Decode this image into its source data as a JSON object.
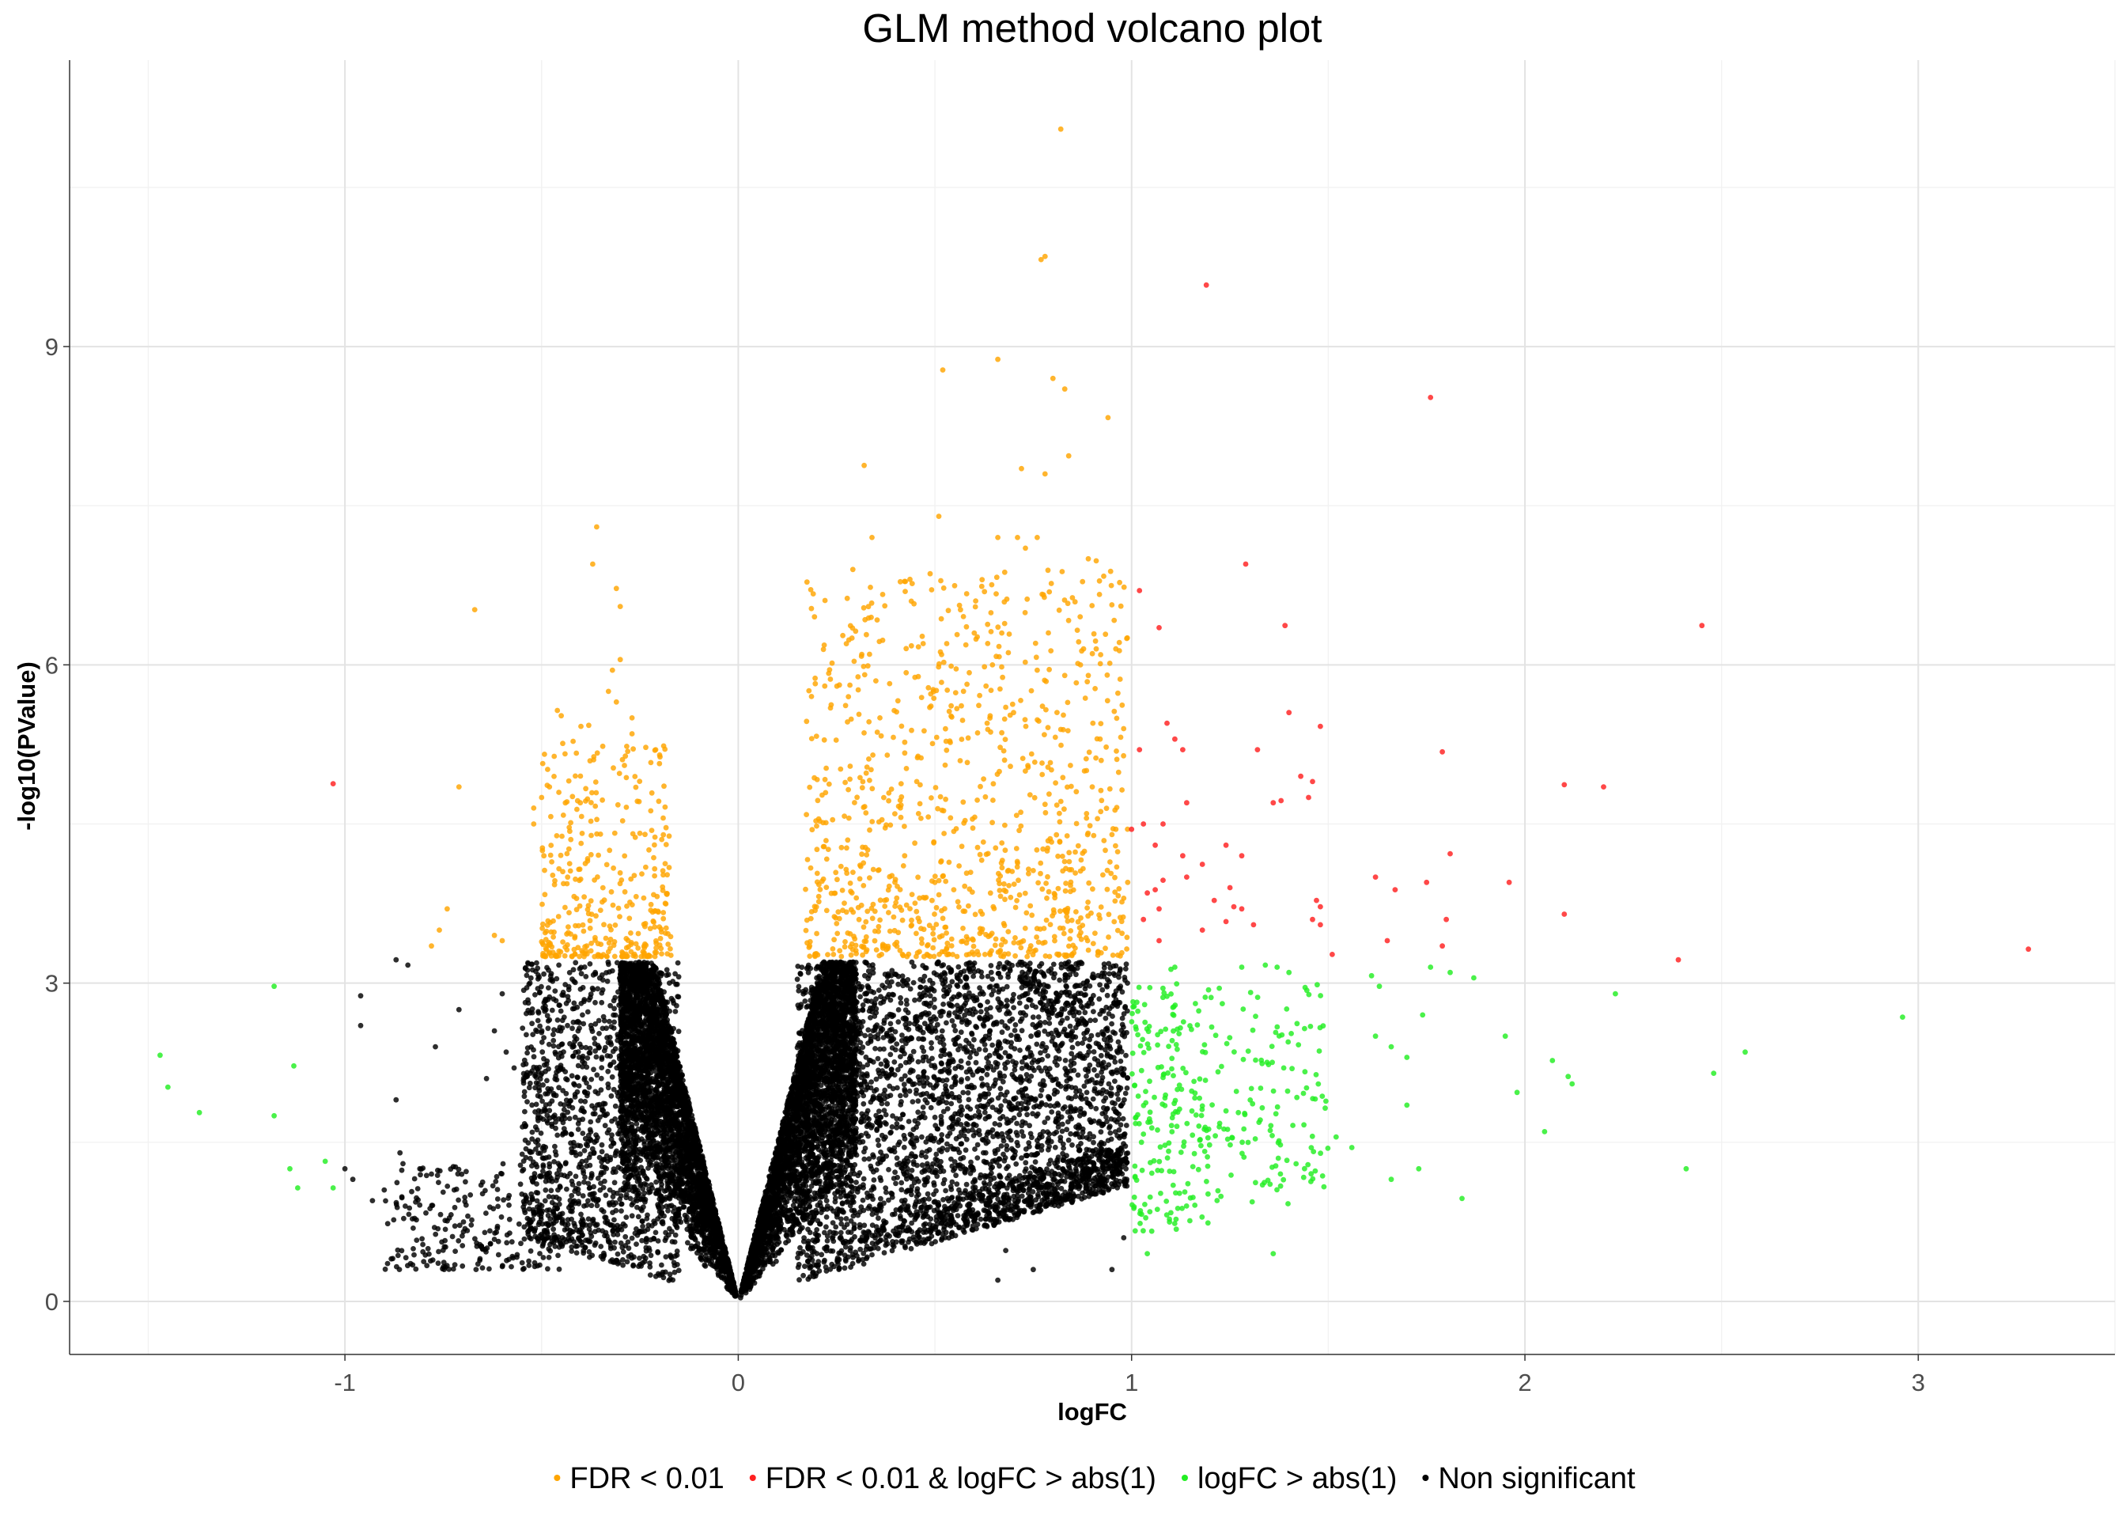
{
  "chart_data": {
    "type": "scatter",
    "title": "GLM method volcano plot",
    "xlabel": "logFC",
    "ylabel": "-log10(PValue)",
    "xlim": [
      -1.7,
      3.5
    ],
    "ylim": [
      -0.5,
      11.7
    ],
    "x_ticks": [
      -1,
      0,
      1,
      2,
      3
    ],
    "x_tick_labels": [
      "-1",
      "0",
      "1",
      "2",
      "3"
    ],
    "y_ticks": [
      0,
      3,
      6,
      9
    ],
    "y_tick_labels": [
      "0",
      "3",
      "6",
      "9"
    ],
    "grid": true,
    "legend_position": "bottom",
    "series": [
      {
        "name": "FDR < 0.01",
        "color": "#FFA500",
        "points": [
          [
            0.82,
            11.05
          ],
          [
            0.78,
            9.85
          ],
          [
            0.77,
            9.82
          ],
          [
            0.52,
            8.78
          ],
          [
            0.66,
            8.88
          ],
          [
            0.8,
            8.7
          ],
          [
            0.83,
            8.6
          ],
          [
            0.94,
            8.33
          ],
          [
            0.32,
            7.88
          ],
          [
            0.72,
            7.85
          ],
          [
            0.78,
            7.8
          ],
          [
            0.84,
            7.97
          ],
          [
            0.51,
            7.4
          ],
          [
            0.34,
            7.2
          ],
          [
            0.66,
            7.2
          ],
          [
            0.71,
            7.2
          ],
          [
            0.73,
            7.1
          ],
          [
            0.76,
            7.2
          ],
          [
            0.89,
            7.0
          ],
          [
            0.91,
            6.98
          ],
          [
            -0.36,
            7.3
          ],
          [
            -0.37,
            6.95
          ],
          [
            -0.31,
            6.72
          ],
          [
            -0.67,
            6.52
          ],
          [
            -0.3,
            6.55
          ],
          [
            -0.3,
            6.05
          ],
          [
            -0.32,
            5.95
          ],
          [
            -0.33,
            5.75
          ],
          [
            -0.31,
            5.65
          ],
          [
            -0.45,
            5.52
          ],
          [
            -0.46,
            5.57
          ],
          [
            -0.4,
            5.42
          ],
          [
            -0.38,
            5.43
          ],
          [
            -0.27,
            5.5
          ],
          [
            -0.27,
            5.35
          ],
          [
            -0.2,
            5.15
          ],
          [
            -0.21,
            5.2
          ],
          [
            -0.71,
            4.85
          ],
          [
            -0.48,
            4.85
          ],
          [
            -0.5,
            4.75
          ],
          [
            -0.52,
            4.65
          ],
          [
            -0.52,
            4.5
          ],
          [
            -0.74,
            3.7
          ],
          [
            -0.76,
            3.5
          ],
          [
            -0.78,
            3.35
          ],
          [
            -0.62,
            3.45
          ],
          [
            -0.6,
            3.4
          ],
          [
            0.23,
            5.92
          ],
          [
            0.22,
            5.8
          ],
          [
            0.28,
            5.7
          ],
          [
            0.36,
            5.5
          ],
          [
            0.44,
            6.6
          ],
          [
            0.47,
            6.2
          ],
          [
            0.53,
            6.2
          ],
          [
            0.6,
            6.3
          ],
          [
            0.67,
            6.3
          ],
          [
            0.68,
            5.6
          ],
          [
            0.7,
            5.55
          ],
          [
            0.63,
            5.8
          ],
          [
            0.87,
            6.0
          ],
          [
            0.91,
            6.15
          ],
          [
            0.96,
            6.15
          ],
          [
            0.89,
            5.9
          ],
          [
            0.76,
            5.95
          ],
          [
            0.83,
            5.9
          ],
          [
            0.92,
            5.3
          ],
          [
            0.88,
            5.0
          ],
          [
            0.9,
            4.85
          ],
          [
            0.95,
            4.4
          ],
          [
            0.96,
            4.45
          ],
          [
            0.98,
            3.8
          ],
          [
            0.99,
            3.95
          ]
        ],
        "generated": {
          "count": 1300,
          "clusters": [
            {
              "xmin": -0.5,
              "xmax": -0.17,
              "ymin": 3.25,
              "ymax": 5.3,
              "n": 360,
              "yskew": 2.2
            },
            {
              "xmin": 0.17,
              "xmax": 0.99,
              "ymin": 3.25,
              "ymax": 6.9,
              "n": 940,
              "yskew": 1.7
            }
          ]
        }
      },
      {
        "name": "FDR < 0.01 & logFC > abs(1)",
        "color": "#FF2020",
        "points": [
          [
            1.19,
            9.58
          ],
          [
            1.76,
            8.52
          ],
          [
            1.29,
            6.95
          ],
          [
            2.45,
            6.37
          ],
          [
            1.02,
            6.7
          ],
          [
            1.07,
            6.35
          ],
          [
            1.39,
            6.37
          ],
          [
            1.09,
            5.45
          ],
          [
            1.11,
            5.3
          ],
          [
            1.13,
            5.2
          ],
          [
            1.02,
            5.2
          ],
          [
            1.4,
            5.55
          ],
          [
            1.48,
            5.42
          ],
          [
            1.32,
            5.2
          ],
          [
            1.79,
            5.18
          ],
          [
            2.1,
            4.87
          ],
          [
            2.2,
            4.85
          ],
          [
            -1.03,
            4.88
          ],
          [
            1.43,
            4.95
          ],
          [
            1.46,
            4.9
          ],
          [
            1.45,
            4.75
          ],
          [
            1.38,
            4.72
          ],
          [
            1.36,
            4.7
          ],
          [
            1.14,
            4.7
          ],
          [
            1.0,
            4.45
          ],
          [
            1.03,
            4.5
          ],
          [
            1.08,
            4.5
          ],
          [
            1.06,
            4.3
          ],
          [
            1.13,
            4.2
          ],
          [
            1.18,
            4.12
          ],
          [
            1.24,
            4.3
          ],
          [
            1.28,
            4.2
          ],
          [
            1.08,
            3.97
          ],
          [
            1.14,
            4.0
          ],
          [
            1.25,
            3.9
          ],
          [
            1.21,
            3.78
          ],
          [
            1.26,
            3.72
          ],
          [
            1.28,
            3.7
          ],
          [
            1.31,
            3.55
          ],
          [
            1.24,
            3.58
          ],
          [
            1.18,
            3.5
          ],
          [
            1.47,
            3.78
          ],
          [
            1.48,
            3.72
          ],
          [
            1.46,
            3.6
          ],
          [
            1.48,
            3.55
          ],
          [
            1.04,
            3.85
          ],
          [
            1.06,
            3.88
          ],
          [
            1.07,
            3.7
          ],
          [
            1.03,
            3.6
          ],
          [
            1.07,
            3.4
          ],
          [
            1.62,
            4.0
          ],
          [
            1.67,
            3.88
          ],
          [
            1.75,
            3.95
          ],
          [
            1.81,
            4.22
          ],
          [
            1.96,
            3.95
          ],
          [
            1.8,
            3.6
          ],
          [
            2.1,
            3.65
          ],
          [
            1.65,
            3.4
          ],
          [
            1.79,
            3.35
          ],
          [
            1.51,
            3.27
          ],
          [
            2.39,
            3.22
          ],
          [
            3.28,
            3.32
          ]
        ]
      },
      {
        "name": "logFC > abs(1)",
        "color": "#22EE22",
        "points": [
          [
            -1.47,
            2.32
          ],
          [
            -1.45,
            2.02
          ],
          [
            -1.37,
            1.78
          ],
          [
            -1.18,
            2.97
          ],
          [
            -1.13,
            2.22
          ],
          [
            -1.18,
            1.75
          ],
          [
            -1.14,
            1.25
          ],
          [
            -1.12,
            1.07
          ],
          [
            -1.05,
            1.32
          ],
          [
            -1.03,
            1.07
          ],
          [
            1.04,
            0.45
          ],
          [
            1.36,
            0.45
          ],
          [
            1.84,
            0.97
          ],
          [
            1.95,
            2.5
          ],
          [
            1.98,
            1.97
          ],
          [
            2.05,
            1.6
          ],
          [
            2.07,
            2.27
          ],
          [
            2.11,
            2.12
          ],
          [
            2.12,
            2.05
          ],
          [
            2.23,
            2.9
          ],
          [
            2.41,
            1.25
          ],
          [
            2.48,
            2.15
          ],
          [
            2.56,
            2.35
          ],
          [
            2.96,
            2.68
          ],
          [
            1.61,
            3.07
          ],
          [
            1.63,
            2.97
          ],
          [
            1.74,
            2.7
          ],
          [
            1.76,
            3.15
          ],
          [
            1.81,
            3.1
          ],
          [
            1.87,
            3.05
          ],
          [
            1.52,
            1.55
          ],
          [
            1.56,
            1.45
          ],
          [
            1.7,
            1.85
          ],
          [
            1.73,
            1.25
          ],
          [
            1.66,
            1.15
          ],
          [
            1.62,
            2.5
          ],
          [
            1.66,
            2.4
          ],
          [
            1.7,
            2.3
          ],
          [
            1.28,
            3.15
          ],
          [
            1.34,
            3.17
          ],
          [
            1.37,
            3.15
          ],
          [
            1.4,
            3.1
          ],
          [
            1.11,
            3.15
          ],
          [
            1.1,
            3.13
          ]
        ],
        "generated": {
          "count": 330,
          "clusters": [
            {
              "xmin": 1.0,
              "xmax": 1.2,
              "ymin": 0.65,
              "ymax": 3.0,
              "n": 200,
              "yskew": 1.0
            },
            {
              "xmin": 1.2,
              "xmax": 1.5,
              "ymin": 0.9,
              "ymax": 3.0,
              "n": 130,
              "yskew": 1.0
            }
          ]
        }
      },
      {
        "name": "Non significant",
        "color": "#000000",
        "points": [
          [
            -0.96,
            2.88
          ],
          [
            -0.96,
            2.6
          ],
          [
            -0.87,
            3.22
          ],
          [
            -0.84,
            3.17
          ],
          [
            -0.87,
            1.9
          ],
          [
            -0.86,
            1.4
          ],
          [
            -0.77,
            2.4
          ],
          [
            -0.78,
            1.2
          ],
          [
            -0.71,
            2.75
          ],
          [
            -0.6,
            2.9
          ],
          [
            -0.62,
            2.55
          ],
          [
            -0.59,
            2.35
          ],
          [
            -0.57,
            2.2
          ],
          [
            -0.64,
            2.1
          ],
          [
            -1.0,
            1.25
          ],
          [
            -0.98,
            1.15
          ],
          [
            -0.93,
            0.95
          ],
          [
            -0.9,
            1.05
          ],
          [
            0.75,
            0.3
          ],
          [
            0.66,
            0.2
          ],
          [
            0.95,
            0.3
          ],
          [
            0.98,
            0.6
          ],
          [
            0.68,
            0.48
          ]
        ],
        "generated": {
          "count": 12500,
          "clusters": [
            {
              "vshape": true,
              "xmin": -0.3,
              "xmax": 0.0,
              "n": 3600
            },
            {
              "vshape": true,
              "xmin": 0.0,
              "xmax": 0.3,
              "n": 3400
            },
            {
              "xmin": -0.55,
              "xmax": -0.15,
              "ymin": 0.05,
              "ymax": 3.2,
              "n": 1300,
              "yskew": 1.0,
              "vfloor": true
            },
            {
              "xmin": 0.15,
              "xmax": 0.99,
              "ymin": 0.05,
              "ymax": 3.2,
              "n": 3600,
              "yskew": 0.9,
              "vfloor": true
            },
            {
              "xmin": -0.9,
              "xmax": -0.45,
              "ymin": 0.3,
              "ymax": 1.3,
              "n": 260,
              "yskew": 1.3
            }
          ]
        }
      }
    ]
  }
}
